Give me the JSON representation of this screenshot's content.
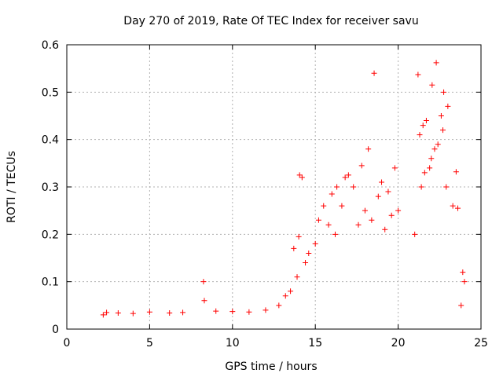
{
  "chart_data": {
    "type": "scatter",
    "title": "Day 270 of 2019, Rate Of TEC Index for receiver savu",
    "xlabel": "GPS time / hours",
    "ylabel": "ROTI / TECUs",
    "xlim": [
      0,
      25
    ],
    "ylim": [
      0,
      0.6
    ],
    "x_ticks": [
      "0",
      "5",
      "10",
      "15",
      "20",
      "25"
    ],
    "y_ticks": [
      "0",
      "0.1",
      "0.2",
      "0.3",
      "0.4",
      "0.5",
      "0.6"
    ],
    "grid": true,
    "marker": "plus",
    "color": "#ff0000",
    "series": [
      {
        "x": [
          8.25,
          18.55,
          21.2,
          22.05,
          22.75,
          23.5,
          22.3,
          21.5,
          18.2,
          17.0,
          17.8,
          19.0,
          19.8,
          14.2,
          14.05,
          16.3,
          16.0,
          16.8,
          15.2,
          21.7,
          22.4,
          23.0,
          21.0,
          19.4,
          14.0,
          13.7,
          13.5,
          15.5,
          17.3,
          18.8,
          20.0,
          21.3,
          22.9,
          23.6,
          24.0,
          8.3,
          12.8,
          13.2,
          2.4,
          3.1,
          4.0,
          5.0,
          6.2,
          7.0,
          9.0,
          10.0,
          11.0,
          12.0,
          2.2,
          23.8,
          22.6,
          21.9,
          21.4,
          22.2,
          22.0,
          16.6,
          15.8,
          18.0,
          19.6,
          14.6,
          15.0,
          16.2,
          17.6,
          18.4,
          19.2,
          21.6,
          22.7,
          23.3,
          23.9,
          13.9,
          14.4
        ],
        "y": [
          0.1,
          0.54,
          0.537,
          0.515,
          0.5,
          0.332,
          0.562,
          0.43,
          0.38,
          0.325,
          0.345,
          0.31,
          0.34,
          0.32,
          0.325,
          0.3,
          0.285,
          0.32,
          0.23,
          0.44,
          0.39,
          0.47,
          0.2,
          0.29,
          0.195,
          0.17,
          0.08,
          0.26,
          0.3,
          0.28,
          0.25,
          0.41,
          0.3,
          0.255,
          0.1,
          0.06,
          0.05,
          0.07,
          0.035,
          0.034,
          0.033,
          0.036,
          0.034,
          0.035,
          0.038,
          0.037,
          0.036,
          0.04,
          0.03,
          0.05,
          0.45,
          0.34,
          0.3,
          0.38,
          0.36,
          0.26,
          0.22,
          0.25,
          0.24,
          0.16,
          0.18,
          0.2,
          0.22,
          0.23,
          0.21,
          0.33,
          0.42,
          0.26,
          0.12,
          0.11,
          0.14
        ]
      }
    ]
  }
}
